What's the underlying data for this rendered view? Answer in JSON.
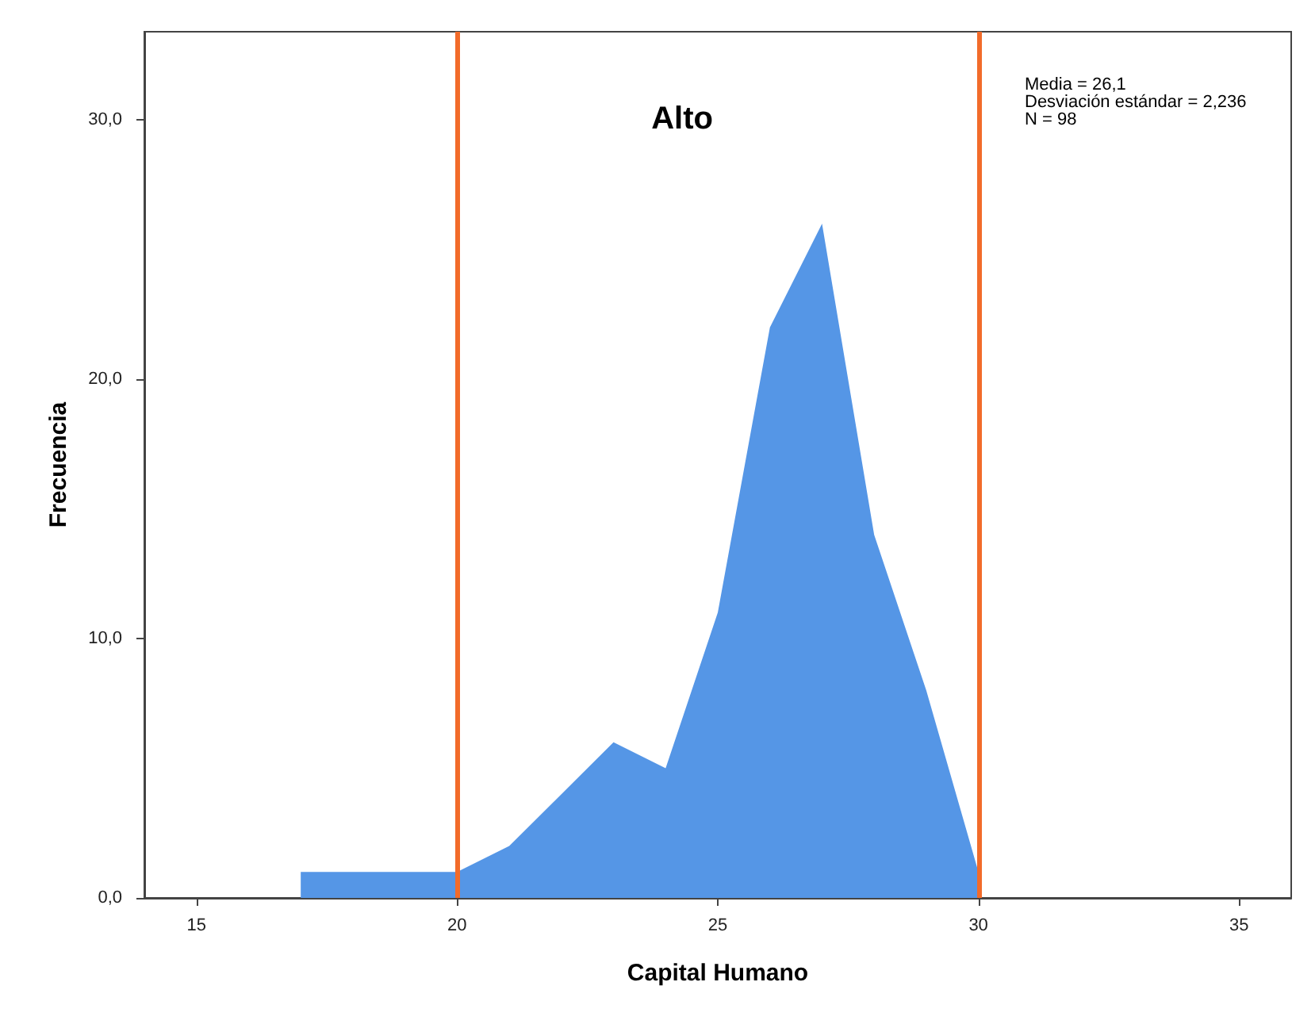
{
  "chart_data": {
    "type": "area",
    "title": "Alto",
    "xlabel": "Capital Humano",
    "ylabel": "Frecuencia",
    "x": [
      17,
      18,
      19,
      20,
      21,
      22,
      23,
      24,
      25,
      26,
      27,
      28,
      29,
      30
    ],
    "series": [
      {
        "color": "#5596e6",
        "values": [
          1,
          1,
          1,
          1,
          2,
          4,
          6,
          5,
          11,
          22,
          26,
          14,
          8,
          1
        ]
      }
    ],
    "xlim": [
      14,
      36
    ],
    "xticks": [
      15,
      20,
      25,
      30,
      35
    ],
    "ylim": [
      0,
      33.4
    ],
    "yticks": [
      {
        "value": 0,
        "label": "0,0"
      },
      {
        "value": 10,
        "label": "10,0"
      },
      {
        "value": 20,
        "label": "20,0"
      },
      {
        "value": 30,
        "label": "30,0"
      }
    ],
    "ref_lines": [
      {
        "axis": "x",
        "value": 20,
        "color": "#f26b2a"
      },
      {
        "axis": "x",
        "value": 30,
        "color": "#f26b2a"
      }
    ],
    "annotations": [
      "Media = 26,1",
      "Desviación estándar = 2,236",
      "N = 98"
    ],
    "grid": false,
    "marker": "none"
  }
}
